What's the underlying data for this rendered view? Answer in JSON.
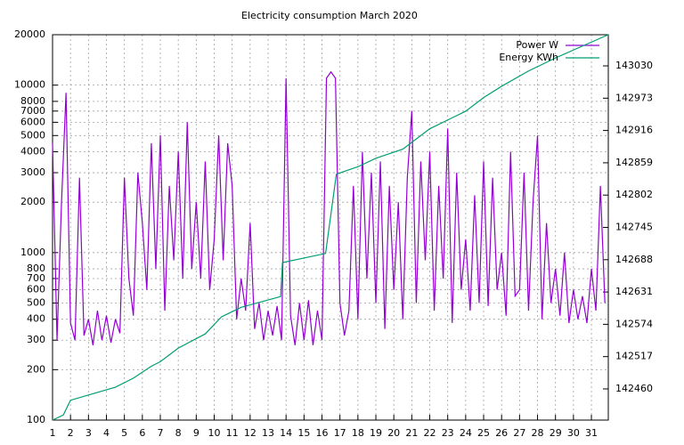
{
  "chart_data": {
    "type": "line",
    "title": "Electricity consumption March 2020",
    "xlim": [
      1,
      31.94
    ],
    "xticks": [
      1,
      2,
      3,
      4,
      5,
      6,
      7,
      8,
      9,
      10,
      11,
      12,
      13,
      14,
      15,
      16,
      17,
      18,
      19,
      20,
      21,
      22,
      23,
      24,
      25,
      26,
      27,
      28,
      29,
      30,
      31
    ],
    "ylim": [
      100,
      20000
    ],
    "log_y": true,
    "yticks": [
      100,
      200,
      300,
      400,
      500,
      600,
      700,
      800,
      1000,
      2000,
      3000,
      4000,
      5000,
      6000,
      7000,
      8000,
      10000,
      20000
    ],
    "y2lim": [
      142405,
      143085
    ],
    "y2ticks": [
      142460,
      142517,
      142574,
      142631,
      142688,
      142745,
      142802,
      142859,
      142916,
      142973,
      143030
    ],
    "grid": true,
    "legend": "top right",
    "series": [
      {
        "name": "Power W",
        "color": "#9400d3",
        "x": [
          1,
          1.25,
          1.5,
          1.75,
          2,
          2.25,
          2.5,
          2.75,
          3,
          3.25,
          3.5,
          3.75,
          4,
          4.25,
          4.5,
          4.75,
          5,
          5.25,
          5.5,
          5.75,
          6,
          6.25,
          6.5,
          6.75,
          7,
          7.25,
          7.5,
          7.75,
          8,
          8.25,
          8.5,
          8.75,
          9,
          9.25,
          9.5,
          9.75,
          10,
          10.25,
          10.5,
          10.75,
          11,
          11.25,
          11.5,
          11.75,
          12,
          12.25,
          12.5,
          12.75,
          13,
          13.25,
          13.5,
          13.75,
          14,
          14.25,
          14.5,
          14.75,
          15,
          15.25,
          15.5,
          15.75,
          16,
          16.25,
          16.5,
          16.75,
          17,
          17.25,
          17.5,
          17.75,
          18,
          18.25,
          18.5,
          18.75,
          19,
          19.25,
          19.5,
          19.75,
          20,
          20.25,
          20.5,
          20.75,
          21,
          21.25,
          21.5,
          21.75,
          22,
          22.25,
          22.5,
          22.75,
          23,
          23.25,
          23.5,
          23.75,
          24,
          24.25,
          24.5,
          24.75,
          25,
          25.25,
          25.5,
          25.75,
          26,
          26.25,
          26.5,
          26.75,
          27,
          27.25,
          27.5,
          27.75,
          28,
          28.25,
          28.5,
          28.75,
          29,
          29.25,
          29.5,
          29.75,
          30,
          30.25,
          30.5,
          30.75,
          31,
          31.25,
          31.5,
          31.75
        ],
        "values": [
          4500,
          300,
          2000,
          9000,
          380,
          300,
          2800,
          320,
          400,
          280,
          450,
          300,
          420,
          290,
          400,
          330,
          2800,
          700,
          420,
          3000,
          1500,
          600,
          4500,
          800,
          5000,
          450,
          2500,
          900,
          4000,
          700,
          6000,
          800,
          2000,
          700,
          3500,
          600,
          1200,
          5000,
          900,
          4500,
          2500,
          400,
          700,
          450,
          1500,
          350,
          500,
          300,
          450,
          320,
          480,
          300,
          11000,
          420,
          280,
          500,
          300,
          520,
          280,
          450,
          300,
          11000,
          12000,
          11000,
          500,
          320,
          450,
          2500,
          400,
          4000,
          700,
          3000,
          500,
          3500,
          350,
          2500,
          600,
          2000,
          400,
          2800,
          7000,
          500,
          3500,
          900,
          4000,
          450,
          2500,
          700,
          5500,
          380,
          3000,
          600,
          1200,
          450,
          2200,
          500,
          3500,
          480,
          2800,
          600,
          1000,
          420,
          4000,
          550,
          600,
          3000,
          450,
          2000,
          5000,
          400,
          1500,
          500,
          800,
          420,
          1000,
          380,
          600,
          400,
          550,
          380,
          800,
          450,
          2500,
          500
        ]
      },
      {
        "name": "Energy KWh",
        "color": "#009e73",
        "axis": "y2",
        "x": [
          1,
          1.6,
          2,
          4.5,
          5.5,
          6.5,
          7,
          8,
          9.5,
          10.4,
          11.5,
          13.7,
          13.8,
          16.2,
          16.8,
          18,
          19,
          20.5,
          21,
          22,
          24,
          25,
          26,
          27.5,
          29,
          30.5,
          31.94
        ],
        "values": [
          142405,
          142414,
          142440,
          142463,
          142479,
          142500,
          142508,
          142532,
          142557,
          142587,
          142604,
          142623,
          142683,
          142699,
          142839,
          142852,
          142867,
          142883,
          142895,
          142919,
          142950,
          142974,
          142994,
          143021,
          143044,
          143065,
          143085
        ]
      }
    ]
  }
}
